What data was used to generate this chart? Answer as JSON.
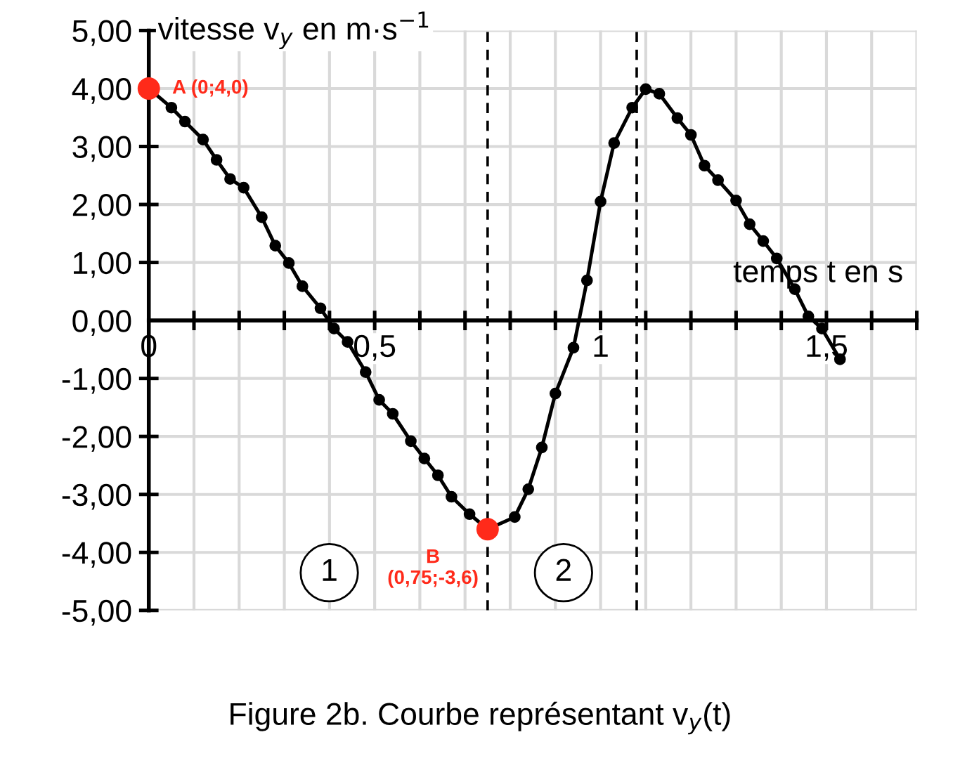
{
  "chart_data": {
    "type": "line",
    "xlabel": "temps t en s",
    "ylabel": "vitesse v$_{y}$ en m·s$^{−1}$",
    "title": "Figure 2b. Courbe représentant v$_{y}$(t)",
    "series": [
      {
        "color": "#000000",
        "marker": "circle",
        "line_style": "solid",
        "x": [
          0,
          0.05,
          0.08,
          0.12,
          0.15,
          0.18,
          0.21,
          0.25,
          0.28,
          0.31,
          0.34,
          0.38,
          0.41,
          0.44,
          0.48,
          0.51,
          0.54,
          0.58,
          0.61,
          0.64,
          0.67,
          0.71,
          0.75,
          0.81,
          0.84,
          0.87,
          0.9,
          0.94,
          0.97,
          1.0,
          1.03,
          1.07,
          1.1,
          1.13,
          1.17,
          1.2,
          1.23,
          1.26,
          1.3,
          1.33,
          1.36,
          1.39,
          1.43,
          1.46,
          1.49,
          1.53
        ],
        "values": [
          4.0,
          3.67,
          3.43,
          3.12,
          2.77,
          2.44,
          2.29,
          1.78,
          1.29,
          0.99,
          0.59,
          0.21,
          -0.14,
          -0.37,
          -0.89,
          -1.37,
          -1.61,
          -2.08,
          -2.38,
          -2.67,
          -3.04,
          -3.34,
          -3.6,
          -3.39,
          -2.91,
          -2.19,
          -1.26,
          -0.47,
          0.69,
          2.05,
          3.06,
          3.67,
          3.99,
          3.91,
          3.49,
          3.2,
          2.67,
          2.42,
          2.07,
          1.66,
          1.37,
          1.07,
          0.54,
          0.07,
          -0.14,
          -0.67
        ]
      },
      {
        "type": "scatter",
        "color": "#ff2a1a",
        "marker": "circle",
        "x": [
          0,
          0.75
        ],
        "values": [
          4.0,
          -3.6
        ]
      }
    ],
    "annotations": [
      {
        "text": "A (0;4,0)",
        "x": 0,
        "y": 4.0
      },
      {
        "text": "B\n(0,75;-3,6)",
        "x": 0.75,
        "y": -3.6
      },
      "1",
      "2"
    ],
    "ref_lines": [
      {
        "axis": "x",
        "value": 0.75,
        "line_style": "dashed",
        "color": "#000000"
      },
      {
        "axis": "x",
        "value": 1.08,
        "line_style": "dashed",
        "color": "#000000"
      }
    ],
    "xlim": [
      0,
      1.7
    ],
    "ylim": [
      -5,
      5
    ],
    "xticks": [
      {
        "value": 0,
        "label": "0"
      },
      {
        "value": 0.1,
        "label": null
      },
      {
        "value": 0.2,
        "label": null
      },
      {
        "value": 0.3,
        "label": null
      },
      {
        "value": 0.4,
        "label": null
      },
      {
        "value": 0.5,
        "label": "0,5"
      },
      {
        "value": 0.6,
        "label": null
      },
      {
        "value": 0.7,
        "label": null
      },
      {
        "value": 0.8,
        "label": null
      },
      {
        "value": 0.9,
        "label": null
      },
      {
        "value": 1,
        "label": "1"
      },
      {
        "value": 1.1,
        "label": null
      },
      {
        "value": 1.2,
        "label": null
      },
      {
        "value": 1.3,
        "label": null
      },
      {
        "value": 1.4,
        "label": null
      },
      {
        "value": 1.5,
        "label": "1,5"
      },
      {
        "value": 1.6,
        "label": null
      },
      {
        "value": 1.7,
        "label": null
      }
    ],
    "yticks": [
      {
        "value": -5,
        "label": "-5,00"
      },
      {
        "value": -4,
        "label": "-4,00"
      },
      {
        "value": -3,
        "label": "-3,00"
      },
      {
        "value": -2,
        "label": "-2,00"
      },
      {
        "value": -1,
        "label": "-1,00"
      },
      {
        "value": 0,
        "label": "0,00"
      },
      {
        "value": 1,
        "label": "1,00"
      },
      {
        "value": 2,
        "label": "2,00"
      },
      {
        "value": 3,
        "label": "3,00"
      },
      {
        "value": 4,
        "label": "4,00"
      },
      {
        "value": 5,
        "label": "5,00"
      }
    ],
    "grid": true
  }
}
